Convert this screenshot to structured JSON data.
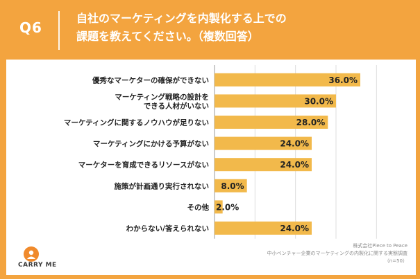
{
  "header": {
    "question_label": "Q6",
    "title": "自社のマーケティングを内製化する上での\n課題を教えてください。（複数回答）"
  },
  "colors": {
    "background": "#f3a43f",
    "bar": "#f2b94b",
    "text": "#222222"
  },
  "chart_data": {
    "type": "bar",
    "orientation": "horizontal",
    "categories": [
      "優秀なマーケターの確保ができない",
      "マーケティング戦略の設計を\nできる人材がいない",
      "マーケティングに関するノウハウが足りない",
      "マーケティングにかける予算がない",
      "マーケターを育成できるリソースがない",
      "施策が計画通り実行されない",
      "その他",
      "わからない/答えられない"
    ],
    "values": [
      36.0,
      30.0,
      28.0,
      24.0,
      24.0,
      8.0,
      2.0,
      24.0
    ],
    "value_labels": [
      "36.0%",
      "30.0%",
      "28.0%",
      "24.0%",
      "24.0%",
      "8.0%",
      "2.0%",
      "24.0%"
    ],
    "xlim": [
      0,
      40
    ],
    "grid": true
  },
  "footer": {
    "company": "株式会社Piece to Peace",
    "survey": "中小ベンチャー企業のマーケティングの内製化に関する実態調査",
    "sample": "（n=50）"
  },
  "logo": {
    "text": "CARRY ME",
    "icon": "person-circle-icon"
  }
}
